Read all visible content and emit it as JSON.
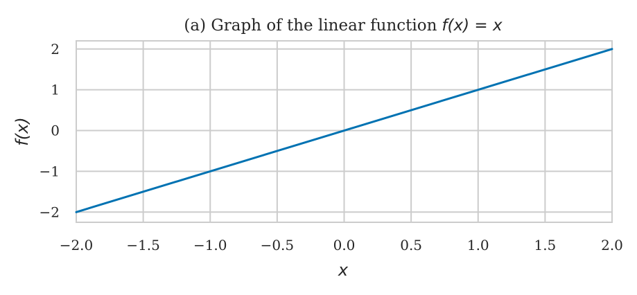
{
  "chart_data": {
    "type": "line",
    "title": "(a) Graph of the linear function",
    "title_math": "f(x) = x",
    "xlabel": "x",
    "ylabel": "f(x)",
    "xlim": [
      -2.0,
      2.0
    ],
    "ylim": [
      -2.25,
      2.2
    ],
    "x_ticks": [
      -2.0,
      -1.5,
      -1.0,
      -0.5,
      0.0,
      0.5,
      1.0,
      1.5,
      2.0
    ],
    "x_tick_labels": [
      "−2.0",
      "−1.5",
      "−1.0",
      "−0.5",
      "0.0",
      "0.5",
      "1.0",
      "1.5",
      "2.0"
    ],
    "y_ticks": [
      -2,
      -1,
      0,
      1,
      2
    ],
    "y_tick_labels": [
      "−2",
      "−1",
      "0",
      "1",
      "2"
    ],
    "grid": true,
    "line_color": "#0072b2",
    "grid_color": "#cccccc",
    "series": [
      {
        "x": [
          -2.0,
          -1.0,
          0.0,
          1.0,
          2.0
        ],
        "y": [
          -2.0,
          -1.0,
          0.0,
          1.0,
          2.0
        ]
      }
    ]
  }
}
